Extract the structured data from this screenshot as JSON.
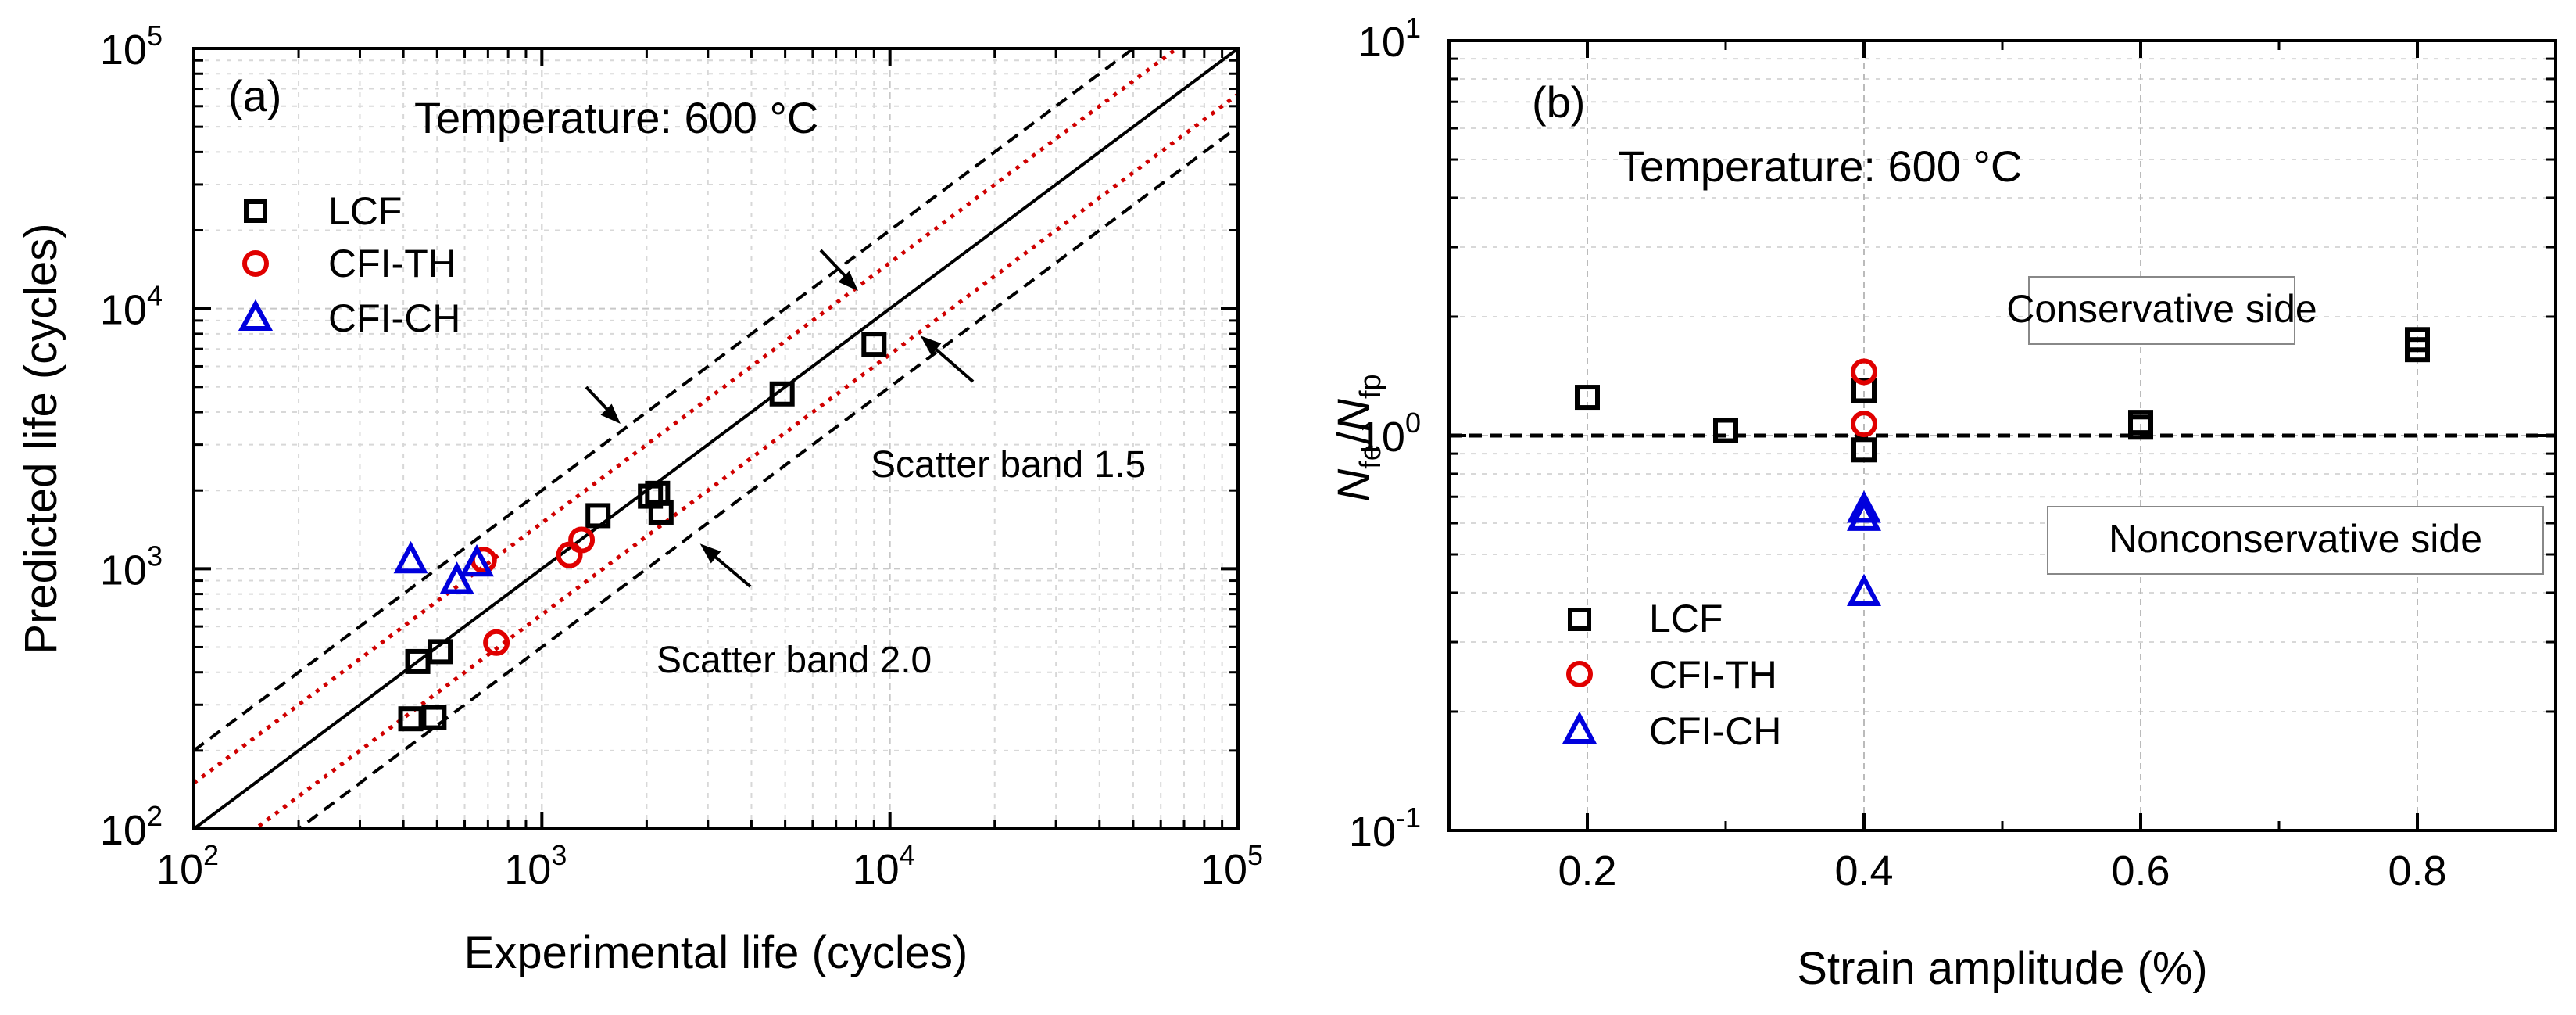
{
  "chart_data": [
    {
      "type": "scatter",
      "panel_label": "(a)",
      "annotation_title": "Temperature: 600 °C",
      "xlabel": "Experimental life (cycles)",
      "ylabel": "Predicted life (cycles)",
      "xscale": "log",
      "yscale": "log",
      "xlim": [
        100,
        100000
      ],
      "ylim": [
        100,
        100000
      ],
      "x_ticks": [
        {
          "value": 100,
          "base": "10",
          "exp": "2"
        },
        {
          "value": 1000,
          "base": "10",
          "exp": "3"
        },
        {
          "value": 10000,
          "base": "10",
          "exp": "4"
        },
        {
          "value": 100000,
          "base": "10",
          "exp": "5"
        }
      ],
      "y_ticks": [
        {
          "value": 100,
          "base": "10",
          "exp": "2"
        },
        {
          "value": 1000,
          "base": "10",
          "exp": "3"
        },
        {
          "value": 10000,
          "base": "10",
          "exp": "4"
        },
        {
          "value": 100000,
          "base": "10",
          "exp": "5"
        }
      ],
      "grid": true,
      "legend_position": "top-left",
      "series": [
        {
          "name": "LCF",
          "marker": "square",
          "color": "#000000",
          "points": [
            [
              420,
              265
            ],
            [
              490,
              268
            ],
            [
              440,
              440
            ],
            [
              510,
              480
            ],
            [
              1450,
              1600
            ],
            [
              2050,
              1900
            ],
            [
              2150,
              1950
            ],
            [
              2200,
              1650
            ],
            [
              4900,
              4700
            ],
            [
              9000,
              7300
            ]
          ]
        },
        {
          "name": "CFI-TH",
          "marker": "circle",
          "color": "#e00000",
          "points": [
            [
              740,
              520
            ],
            [
              1200,
              1130
            ],
            [
              1300,
              1290
            ],
            [
              680,
              1080
            ]
          ]
        },
        {
          "name": "CFI-CH",
          "marker": "triangle",
          "color": "#0000dd",
          "points": [
            [
              420,
              1080
            ],
            [
              570,
              900
            ],
            [
              650,
              1050
            ]
          ]
        }
      ],
      "lines": [
        {
          "kind": "solid",
          "factor": 1,
          "color": "#000000"
        },
        {
          "kind": "dotted",
          "factor": 1.5,
          "color": "#d00000"
        },
        {
          "kind": "dotted",
          "factor": 0.6667,
          "color": "#d00000"
        },
        {
          "kind": "dashed",
          "factor": 2,
          "color": "#000000"
        },
        {
          "kind": "dashed",
          "factor": 0.5,
          "color": "#000000"
        }
      ],
      "annotations": [
        {
          "text": "Scatter band 1.5",
          "position": "right"
        },
        {
          "text": "Scatter band 2.0",
          "position": "lower-middle"
        }
      ]
    },
    {
      "type": "scatter",
      "panel_label": "(b)",
      "annotation_title": "Temperature: 600 °C",
      "xlabel": "Strain amplitude (%)",
      "ylabel_parts": {
        "n1": "N",
        "s1": "fe",
        "slash": "/",
        "n2": "N",
        "s2": "fp"
      },
      "xscale": "linear",
      "yscale": "log",
      "xlim": [
        0.1,
        0.9
      ],
      "ylim": [
        0.1,
        10
      ],
      "x_ticks": [
        {
          "value": 0.2,
          "label": "0.2"
        },
        {
          "value": 0.4,
          "label": "0.4"
        },
        {
          "value": 0.6,
          "label": "0.6"
        },
        {
          "value": 0.8,
          "label": "0.8"
        }
      ],
      "y_ticks": [
        {
          "value": 0.1,
          "base": "10",
          "exp": "-1"
        },
        {
          "value": 1,
          "base": "10",
          "exp": "0"
        },
        {
          "value": 10,
          "base": "10",
          "exp": "1"
        }
      ],
      "grid": true,
      "legend_position": "bottom-left",
      "reference_line": {
        "y": 1,
        "style": "dashed"
      },
      "series": [
        {
          "name": "LCF",
          "marker": "square",
          "color": "#000000",
          "points": [
            [
              0.2,
              1.25
            ],
            [
              0.3,
              1.03
            ],
            [
              0.4,
              1.3
            ],
            [
              0.4,
              0.92
            ],
            [
              0.6,
              1.08
            ],
            [
              0.6,
              1.05
            ],
            [
              0.8,
              1.75
            ],
            [
              0.8,
              1.65
            ]
          ]
        },
        {
          "name": "CFI-TH",
          "marker": "circle",
          "color": "#e00000",
          "points": [
            [
              0.4,
              1.45
            ],
            [
              0.4,
              1.07
            ]
          ]
        },
        {
          "name": "CFI-CH",
          "marker": "triangle",
          "color": "#0000dd",
          "points": [
            [
              0.4,
              0.65
            ],
            [
              0.4,
              0.62
            ],
            [
              0.4,
              0.4
            ]
          ]
        }
      ],
      "boxes": [
        {
          "text": "Conservative side"
        },
        {
          "text": "Nonconservative side"
        }
      ]
    }
  ]
}
